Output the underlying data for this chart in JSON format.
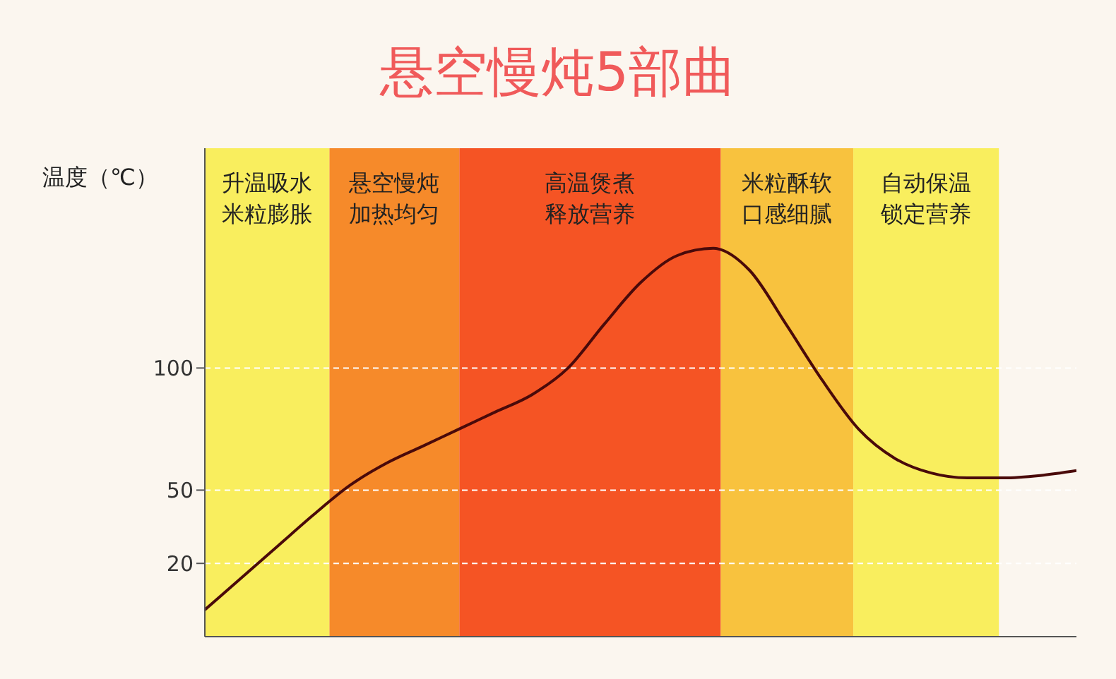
{
  "chart_data": {
    "type": "line",
    "title": "悬空慢炖5部曲",
    "ylabel": "温度（℃）",
    "categories": [
      null,
      null,
      null,
      null,
      null,
      null,
      null,
      null,
      null,
      null,
      null,
      null,
      null,
      null,
      null,
      null,
      null,
      null,
      null,
      null,
      null,
      null,
      null,
      null,
      null
    ],
    "series": [
      {
        "color": "#4a0a0a",
        "values": [
          1,
          14,
          27,
          40,
          52,
          61,
          68,
          75,
          82,
          89,
          100,
          118,
          135,
          146,
          149,
          140,
          118,
          95,
          75,
          63,
          57,
          55,
          55,
          56,
          58
        ]
      }
    ],
    "ylim": [
      -10,
      190
    ],
    "yticks": [
      20,
      50,
      100
    ],
    "grid": "y",
    "marker": "none",
    "line_style": "solid",
    "annotations": [
      "升温吸水米粒膨胀",
      "悬空慢炖加热均匀",
      "高温煲煮释放营养",
      "米粒酥软口感细腻",
      "自动保温锁定营养"
    ]
  }
}
